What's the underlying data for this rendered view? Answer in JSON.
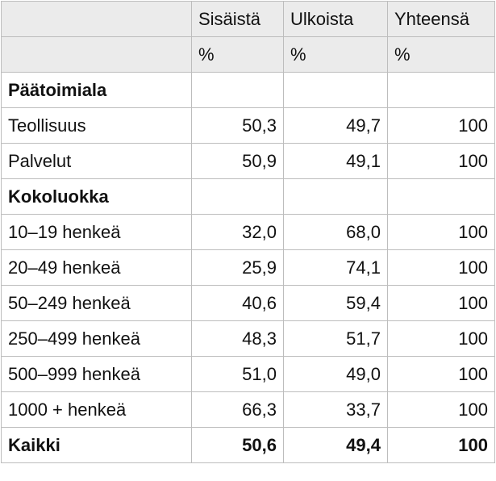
{
  "table": {
    "columns": [
      "Sisäistä",
      "Ulkoista",
      "Yhteensä"
    ],
    "units": [
      "%",
      "%",
      "%"
    ],
    "rows": [
      {
        "label": "Päätoimiala",
        "section": true
      },
      {
        "label": "Teollisuus",
        "values": [
          "50,3",
          "49,7",
          "100"
        ]
      },
      {
        "label": "Palvelut",
        "values": [
          "50,9",
          "49,1",
          "100"
        ]
      },
      {
        "label": "Kokoluokka",
        "section": true
      },
      {
        "label": "10–19 henkeä",
        "values": [
          "32,0",
          "68,0",
          "100"
        ]
      },
      {
        "label": "20–49 henkeä",
        "values": [
          "25,9",
          "74,1",
          "100"
        ]
      },
      {
        "label": "50–249 henkeä",
        "values": [
          "40,6",
          "59,4",
          "100"
        ]
      },
      {
        "label": "250–499 henkeä",
        "values": [
          "48,3",
          "51,7",
          "100"
        ]
      },
      {
        "label": "500–999 henkeä",
        "values": [
          "51,0",
          "49,0",
          "100"
        ]
      },
      {
        "label": "1000 + henkeä",
        "values": [
          "66,3",
          "33,7",
          "100"
        ]
      },
      {
        "label": "Kaikki",
        "values": [
          "50,6",
          "49,4",
          "100"
        ],
        "total": true
      }
    ]
  }
}
